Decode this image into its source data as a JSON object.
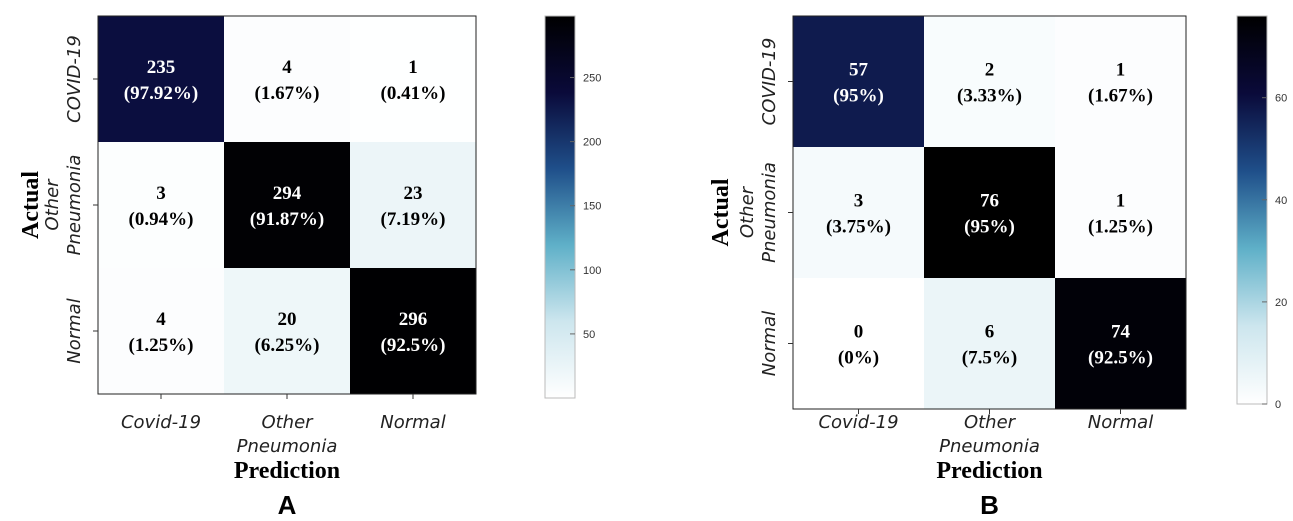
{
  "chart_data": [
    {
      "type": "heatmap",
      "panel_label": "A",
      "xlabel": "Prediction",
      "ylabel": "Actual",
      "x_tick_labels": [
        [
          "Covid-19"
        ],
        [
          "Other",
          "Pneumonia"
        ],
        [
          "Normal"
        ]
      ],
      "y_tick_labels": [
        [
          "COVID-19"
        ],
        [
          "Other",
          "Pneumonia"
        ],
        [
          "Normal"
        ]
      ],
      "cells": [
        [
          {
            "value": "235",
            "percent": "(97.92%)"
          },
          {
            "value": "4",
            "percent": "(1.67%)"
          },
          {
            "value": "1",
            "percent": "(0.41%)"
          }
        ],
        [
          {
            "value": "3",
            "percent": "(0.94%)"
          },
          {
            "value": "294",
            "percent": "(91.87%)"
          },
          {
            "value": "23",
            "percent": "(7.19%)"
          }
        ],
        [
          {
            "value": "4",
            "percent": "(1.25%)"
          },
          {
            "value": "20",
            "percent": "(6.25%)"
          },
          {
            "value": "296",
            "percent": "(92.5%)"
          }
        ]
      ],
      "colorbar": {
        "range": [
          0,
          298
        ],
        "tick_values": [
          50,
          100,
          150,
          200,
          250
        ],
        "tick_labels": [
          "50",
          "100",
          "150",
          "200",
          "250"
        ],
        "colors": [
          "#ffffff",
          "#cde6ee",
          "#5fb0c8",
          "#1f4f8a",
          "#0a0a3a",
          "#000000"
        ]
      }
    },
    {
      "type": "heatmap",
      "panel_label": "B",
      "xlabel": "Prediction",
      "ylabel": "Actual",
      "x_tick_labels": [
        [
          "Covid-19"
        ],
        [
          "Other",
          "Pneumonia"
        ],
        [
          "Normal"
        ]
      ],
      "y_tick_labels": [
        [
          "COVID-19"
        ],
        [
          "Other",
          "Pneumonia"
        ],
        [
          "Normal"
        ]
      ],
      "cells": [
        [
          {
            "value": "57",
            "percent": "(95%)"
          },
          {
            "value": "2",
            "percent": "(3.33%)"
          },
          {
            "value": "1",
            "percent": "(1.67%)"
          }
        ],
        [
          {
            "value": "3",
            "percent": "(3.75%)"
          },
          {
            "value": "76",
            "percent": "(95%)"
          },
          {
            "value": "1",
            "percent": "(1.25%)"
          }
        ],
        [
          {
            "value": "0",
            "percent": "(0%)"
          },
          {
            "value": "6",
            "percent": "(7.5%)"
          },
          {
            "value": "74",
            "percent": "(92.5%)"
          }
        ]
      ],
      "colorbar": {
        "range": [
          0,
          76
        ],
        "tick_values": [
          0,
          20,
          40,
          60
        ],
        "tick_labels": [
          "0",
          "20",
          "40",
          "60"
        ],
        "colors": [
          "#ffffff",
          "#cde6ee",
          "#5fb0c8",
          "#1f4f8a",
          "#0a0a3a",
          "#000000"
        ]
      }
    }
  ]
}
